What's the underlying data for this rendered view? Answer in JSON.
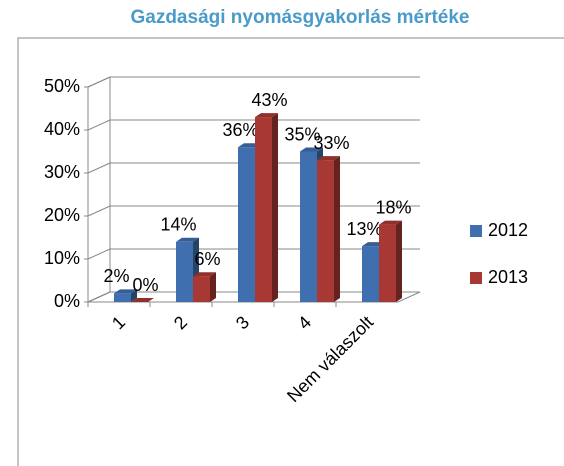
{
  "chart_data": {
    "type": "bar3d",
    "title": "Gazdasági nyomásgyakorlás mértéke",
    "categories": [
      "1",
      "2",
      "3",
      "4",
      "Nem válaszolt"
    ],
    "series": [
      {
        "name": "2012",
        "color": "#3f6fae",
        "values": [
          2,
          14,
          36,
          35,
          13
        ],
        "value_labels": [
          "2%",
          "14%",
          "36%",
          "35%",
          "13%"
        ]
      },
      {
        "name": "2013",
        "color": "#a83834",
        "values": [
          0,
          6,
          43,
          33,
          18
        ],
        "value_labels": [
          "0%",
          "6%",
          "43%",
          "33%",
          "18%"
        ]
      }
    ],
    "ylim": [
      0,
      50
    ],
    "yticks": [
      {
        "value": 0,
        "label": "0%"
      },
      {
        "value": 10,
        "label": "10%"
      },
      {
        "value": 20,
        "label": "20%"
      },
      {
        "value": 30,
        "label": "30%"
      },
      {
        "value": 40,
        "label": "40%"
      },
      {
        "value": 50,
        "label": "50%"
      }
    ],
    "grid": true,
    "legend": "right"
  }
}
